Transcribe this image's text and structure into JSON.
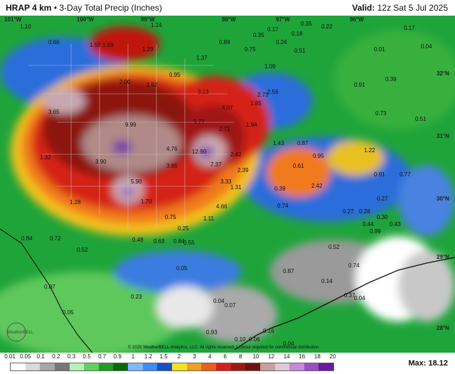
{
  "header": {
    "model": "HRAP 4 km",
    "separator": " • ",
    "product": "3-Day Total Precip (Inches)",
    "valid_label": "Valid:",
    "valid_value": " 12z Sat 5 Jul 2025"
  },
  "grid_labels": [
    "101°W",
    "100°W",
    "99°W",
    "98°W",
    "97°W",
    "96°W",
    "32°N",
    "31°N",
    "30°N",
    "29°N",
    "28°N"
  ],
  "value_labels": [
    "1.10",
    "1.24",
    "0.66",
    "1.56",
    "1.69",
    "1.29",
    "0.35",
    "0.17",
    "0.35",
    "0.22",
    "0.24",
    "0.18",
    "0.17",
    "0.04",
    "0.89",
    "0.75",
    "0.51",
    "0.01",
    "1.37",
    "1.09",
    "0.95",
    "2.00",
    "1.92",
    "0.91",
    "0.39",
    "3.13",
    "2.73",
    "2.56",
    "3.65",
    "4.07",
    "1.85",
    "0.73",
    "0.51",
    "9.99",
    "5.77",
    "2.71",
    "1.94",
    "1.43",
    "0.87",
    "1.32",
    "4.76",
    "12.90",
    "7.37",
    "2.42",
    "1.22",
    "0.95",
    "3.90",
    "3.85",
    "2.39",
    "3.33",
    "0.61",
    "0.91",
    "0.77",
    "5.90",
    "1.31",
    "0.39",
    "2.42",
    "0.27",
    "1.28",
    "1.70",
    "4.66",
    "0.74",
    "0.27",
    "0.28",
    "0.30",
    "0.75",
    "1.11",
    "0.44",
    "0.43",
    "0.25",
    "0.99",
    "0.84",
    "0.72",
    "0.48",
    "0.63",
    "0.84",
    "0.55",
    "0.52",
    "0.52",
    "0.05",
    "0.74",
    "0.23",
    "0.87",
    "0.07",
    "0.14",
    "0.37",
    "0.04",
    "0.04",
    "0.07",
    "0.05",
    "0.93",
    "0.16",
    "0.10",
    "0.06",
    "0.04",
    "0.02"
  ],
  "legend": {
    "ticks": [
      "0.01",
      "0.05",
      "0.1",
      "0.2",
      "0.3",
      "0.5",
      "0.7",
      "0.9",
      "1",
      "1.2",
      "1.5",
      "2",
      "3",
      "4",
      "6",
      "8",
      "10",
      "12",
      "14",
      "16",
      "18",
      "20"
    ],
    "colors": [
      "#ffffff",
      "#d9d9d9",
      "#a6a6a6",
      "#777777",
      "#b3f2b3",
      "#5fd15f",
      "#1ea01e",
      "#0b6b0b",
      "#7fb8ff",
      "#3d8cf5",
      "#1450c8",
      "#f4e220",
      "#f0a020",
      "#e8601a",
      "#d52018",
      "#a01812",
      "#6e120e",
      "#c8a0a0",
      "#e0c8d8",
      "#c88ad8",
      "#9a4ec8",
      "#6a1aa0"
    ],
    "max_label": "Max:",
    "max_value": "18.12"
  },
  "footer": {
    "copyright": "© 2025 WeatherBELL Analytics, LLC. All rights reserved. License required for commercial distribution."
  }
}
